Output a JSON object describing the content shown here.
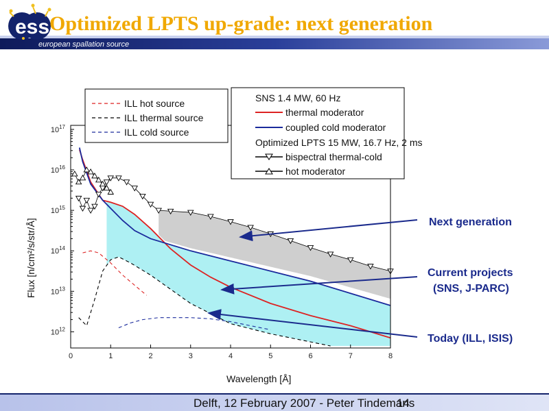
{
  "slide": {
    "title": "Optimized LPTS up-grade: next generation",
    "logo_text": "ess",
    "org_name": "european spallation source",
    "footer": "Delft, 12 February 2007 - Peter Tindemans",
    "slide_number": "14"
  },
  "colors": {
    "header_bg": "#13236b",
    "title": "#f0a800",
    "ill": "#000000",
    "thermal": "#dd2222",
    "cold": "#1a2a9c",
    "band_current": "#aef0f3",
    "band_next": "#cfcfcf",
    "annotation": "#1a2a8c"
  },
  "annotations": {
    "next": "Next generation",
    "current_1": "Current projects",
    "current_2": "(SNS, J-PARC)",
    "today": "Today (ILL, ISIS)"
  },
  "chart_data": {
    "type": "line",
    "xlabel": "Wavelength [Å]",
    "ylabel": "Flux [n/cm²/s/str/Å]",
    "xlim": [
      0,
      8
    ],
    "ylim_log10": [
      11.6,
      17.1
    ],
    "x_ticks": [
      0,
      1,
      2,
      3,
      4,
      5,
      6,
      7,
      8
    ],
    "y_ticks": [
      {
        "value": 12,
        "label": "10",
        "exp": "12"
      },
      {
        "value": 13,
        "label": "10",
        "exp": "13"
      },
      {
        "value": 14,
        "label": "10",
        "exp": "14"
      },
      {
        "value": 15,
        "label": "10",
        "exp": "15"
      },
      {
        "value": 16,
        "label": "10",
        "exp": "16"
      },
      {
        "value": 17,
        "label": "10",
        "exp": "17"
      }
    ],
    "legend_ill": {
      "placement": "top-left",
      "entries": [
        "ILL hot source",
        "ILL thermal source",
        "ILL cold source"
      ]
    },
    "legend_sns": {
      "placement": "top-right",
      "header1": "SNS 1.4 MW, 60 Hz",
      "entries": [
        "thermal moderator",
        "coupled cold  moderator"
      ],
      "header2": "Optimized LPTS 15 MW, 16.7 Hz, 2 ms",
      "entries2": [
        "bispectral thermal-cold",
        "hot moderator"
      ]
    },
    "series": [
      {
        "name": "ILL hot source",
        "style": "dashed",
        "color": "#dd2222",
        "x": [
          0.3,
          0.5,
          0.7,
          1.0,
          1.3,
          1.6,
          1.9
        ],
        "y": [
          13.95,
          14.0,
          13.95,
          13.7,
          13.4,
          13.15,
          12.9
        ]
      },
      {
        "name": "ILL thermal source",
        "style": "dashed",
        "color": "#000000",
        "x": [
          0.2,
          0.4,
          0.6,
          0.8,
          1.0,
          1.2,
          1.5,
          2.0,
          2.5,
          3.0,
          4.0,
          5.0,
          6.0,
          6.5
        ],
        "y": [
          12.35,
          12.15,
          12.8,
          13.5,
          13.78,
          13.85,
          13.7,
          13.4,
          13.05,
          12.7,
          12.2,
          11.95,
          11.75,
          11.65
        ]
      },
      {
        "name": "ILL cold source",
        "style": "dashed",
        "color": "#1a2a9c",
        "x": [
          1.2,
          1.5,
          1.8,
          2.2,
          3.0,
          3.5,
          4.0,
          4.5,
          5.0
        ],
        "y": [
          12.1,
          12.22,
          12.3,
          12.35,
          12.35,
          12.32,
          12.25,
          12.15,
          12.05
        ]
      },
      {
        "name": "thermal moderator",
        "style": "solid",
        "color": "#dd2222",
        "x": [
          0.22,
          0.3,
          0.5,
          0.8,
          1.0,
          1.3,
          1.6,
          2.0,
          2.5,
          3.0,
          3.5,
          4.0,
          5.0,
          6.0,
          7.0,
          7.5,
          8.0
        ],
        "y": [
          16.5,
          16.25,
          15.7,
          15.25,
          15.2,
          15.1,
          14.9,
          14.55,
          14.05,
          13.65,
          13.35,
          13.1,
          12.7,
          12.4,
          12.15,
          12.0,
          11.85
        ]
      },
      {
        "name": "coupled cold  moderator",
        "style": "solid",
        "color": "#1a2a9c",
        "x": [
          0.22,
          0.3,
          0.5,
          0.8,
          1.0,
          1.3,
          1.6,
          2.0,
          2.5,
          3.0,
          4.0,
          5.0,
          6.0,
          7.0,
          8.0
        ],
        "y": [
          16.55,
          16.2,
          15.65,
          15.25,
          15.05,
          14.75,
          14.5,
          14.3,
          14.15,
          14.0,
          13.75,
          13.5,
          13.25,
          12.95,
          12.65
        ]
      },
      {
        "name": "bispectral thermal-cold",
        "style": "marker-down-triangle",
        "color": "#000000",
        "x": [
          0.2,
          0.3,
          0.4,
          0.5,
          0.6,
          0.7,
          0.8,
          0.9,
          1.0,
          1.2,
          1.4,
          1.6,
          1.8,
          2.0,
          2.2,
          2.5,
          3.0,
          3.5,
          4.0,
          4.5,
          5.0,
          5.5,
          6.0,
          6.5,
          7.0,
          7.5,
          8.0
        ],
        "y": [
          15.3,
          15.05,
          15.25,
          15.0,
          15.1,
          15.4,
          15.55,
          15.7,
          15.8,
          15.8,
          15.7,
          15.55,
          15.35,
          15.15,
          15.0,
          14.98,
          14.95,
          14.85,
          14.72,
          14.58,
          14.42,
          14.25,
          14.08,
          13.92,
          13.78,
          13.62,
          13.5
        ]
      },
      {
        "name": "hot moderator",
        "style": "marker-up-triangle",
        "color": "#000000",
        "x": [
          0.1,
          0.2,
          0.3,
          0.4,
          0.5,
          0.6,
          0.7,
          0.8,
          0.9,
          1.0
        ],
        "y": [
          15.9,
          15.7,
          15.8,
          16.0,
          15.95,
          15.85,
          15.75,
          15.65,
          15.55,
          15.45
        ]
      }
    ]
  }
}
